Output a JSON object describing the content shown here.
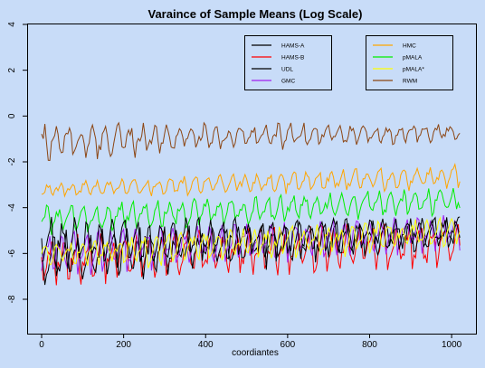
{
  "chart_data": {
    "type": "line",
    "title": "Varaince of Sample Means (Log Scale)",
    "xlabel": "coordiantes",
    "ylabel": "",
    "xlim": [
      0,
      1024
    ],
    "ylim": [
      -9.5,
      4
    ],
    "x_ticks": [
      0,
      200,
      400,
      600,
      800,
      1000
    ],
    "y_ticks": [
      -8,
      -6,
      -4,
      -2,
      0,
      2,
      4
    ],
    "grid": false,
    "legend": [
      {
        "placement": "top-center",
        "entries": [
          "HAMS-A",
          "HAMS-B",
          "UDL",
          "GMC"
        ]
      },
      {
        "placement": "top-right",
        "entries": [
          "HMC",
          "pMALA",
          "pMALA*",
          "RWM"
        ]
      }
    ],
    "x_step": 4,
    "series_trends": "Each series oscillates with a period of about 30 coordinates; values given as start/end of the oscillation envelope in log units",
    "series": [
      {
        "name": "HAMS-A",
        "color": "#000000",
        "upper_start": -5.0,
        "upper_end": -4.4,
        "lower_start": -7.6,
        "lower_end": -6.0
      },
      {
        "name": "HAMS-B",
        "color": "#ff0000",
        "upper_start": -5.2,
        "upper_end": -4.6,
        "lower_start": -7.6,
        "lower_end": -6.8
      },
      {
        "name": "UDL",
        "color": "#000000",
        "upper_start": -4.4,
        "upper_end": -4.5,
        "lower_start": -7.2,
        "lower_end": -5.8
      },
      {
        "name": "GMC",
        "color": "#a020f0",
        "upper_start": -5.1,
        "upper_end": -4.3,
        "lower_start": -7.2,
        "lower_end": -6.0
      },
      {
        "name": "HMC",
        "color": "#ffa500",
        "upper_start": -2.9,
        "upper_end": -2.1,
        "lower_start": -3.7,
        "lower_end": -3.3
      },
      {
        "name": "pMALA",
        "color": "#00ee00",
        "upper_start": -3.9,
        "upper_end": -3.1,
        "lower_start": -5.3,
        "lower_end": -4.4
      },
      {
        "name": "pMALA*",
        "color": "#ffff00",
        "upper_start": -5.4,
        "upper_end": -4.4,
        "lower_start": -7.0,
        "lower_end": -5.9
      },
      {
        "name": "RWM",
        "color": "#8b4513",
        "upper_start": -0.3,
        "upper_end": -0.3,
        "lower_start": -2.2,
        "lower_end": -1.2
      }
    ]
  }
}
